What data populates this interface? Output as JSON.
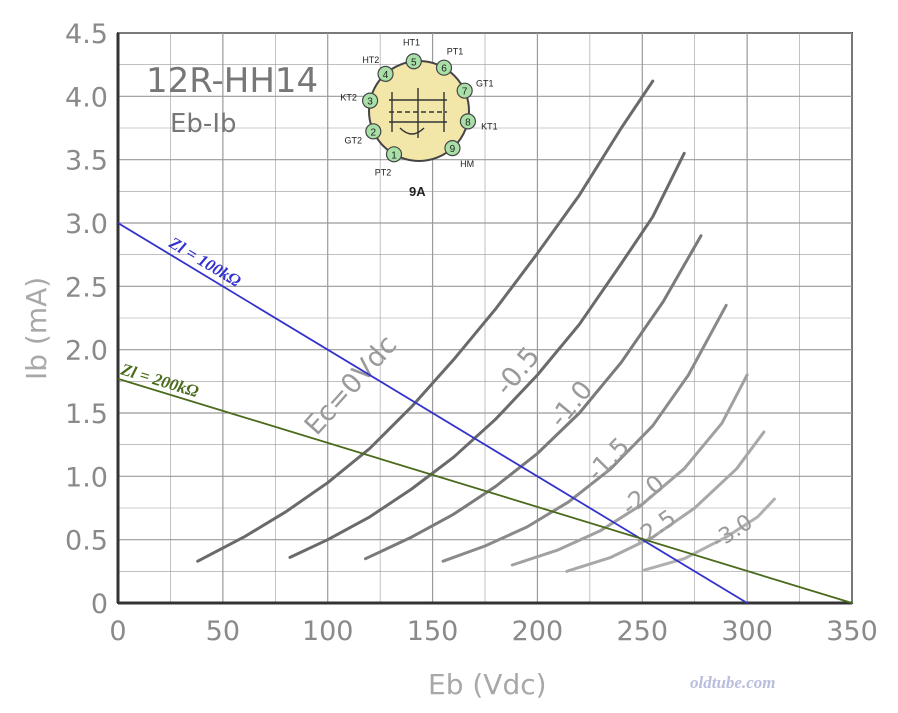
{
  "chart_data": {
    "type": "line",
    "title": "12R-HH14",
    "subtitle": "Eb-Ib",
    "xlabel": "Eb (Vdc)",
    "ylabel": "Ib (mA)",
    "xlim": [
      0,
      350
    ],
    "ylim": [
      0,
      4.5
    ],
    "x_ticks": [
      "0",
      "50",
      "100",
      "150",
      "200",
      "250",
      "300",
      "350"
    ],
    "y_ticks": [
      "0",
      "0.5",
      "1.0",
      "1.5",
      "2.0",
      "2.5",
      "3.0",
      "3.5",
      "4.0",
      "4.5"
    ],
    "grid": true,
    "series": [
      {
        "name": "Ec=0Vdc",
        "color": "#6a6a6a",
        "x": [
          38,
          60,
          80,
          100,
          120,
          140,
          160,
          180,
          200,
          220,
          240,
          255
        ],
        "y": [
          0.33,
          0.52,
          0.72,
          0.95,
          1.22,
          1.55,
          1.92,
          2.32,
          2.76,
          3.22,
          3.75,
          4.12
        ]
      },
      {
        "name": "-0.5",
        "color": "#6a6a6a",
        "x": [
          82,
          100,
          120,
          140,
          160,
          180,
          200,
          220,
          240,
          255,
          270
        ],
        "y": [
          0.36,
          0.5,
          0.68,
          0.9,
          1.15,
          1.45,
          1.8,
          2.2,
          2.68,
          3.05,
          3.55
        ]
      },
      {
        "name": "-1.0",
        "color": "#7a7a7a",
        "x": [
          118,
          140,
          160,
          180,
          200,
          220,
          240,
          260,
          278
        ],
        "y": [
          0.35,
          0.52,
          0.7,
          0.92,
          1.18,
          1.5,
          1.9,
          2.38,
          2.9
        ]
      },
      {
        "name": "-1.5",
        "color": "#8a8a8a",
        "x": [
          155,
          175,
          195,
          215,
          235,
          255,
          272,
          290
        ],
        "y": [
          0.33,
          0.45,
          0.6,
          0.8,
          1.06,
          1.4,
          1.8,
          2.35
        ]
      },
      {
        "name": "-2.0",
        "color": "#a0a0a0",
        "x": [
          188,
          210,
          230,
          250,
          270,
          288,
          300
        ],
        "y": [
          0.3,
          0.42,
          0.57,
          0.78,
          1.06,
          1.42,
          1.8
        ]
      },
      {
        "name": "-2.5",
        "color": "#a8a8a8",
        "x": [
          214,
          235,
          255,
          275,
          295,
          308
        ],
        "y": [
          0.25,
          0.36,
          0.52,
          0.75,
          1.06,
          1.35
        ]
      },
      {
        "name": "-3.0",
        "color": "#b0b0b0",
        "x": [
          251,
          270,
          290,
          305,
          313
        ],
        "y": [
          0.26,
          0.35,
          0.52,
          0.68,
          0.82
        ]
      },
      {
        "name": "Zl = 100kΩ",
        "color": "#3333cc",
        "x": [
          0,
          300
        ],
        "y": [
          3.0,
          0
        ]
      },
      {
        "name": "Zl = 200kΩ",
        "color": "#4a6b1c",
        "x": [
          0,
          350
        ],
        "y": [
          1.77,
          0
        ]
      }
    ]
  },
  "tube_base": {
    "label": "9A",
    "pins": [
      "PT2",
      "GT2",
      "KT2",
      "HT2",
      "HT1",
      "PT1",
      "GT1",
      "KT1",
      "HM"
    ]
  },
  "watermark": "oldtube.com",
  "colors": {
    "background": "#ffffff",
    "grid": "#999999",
    "axis": "#333333",
    "tube_fill": "#f2e6a8",
    "pin_fill": "#a8e0a8"
  }
}
